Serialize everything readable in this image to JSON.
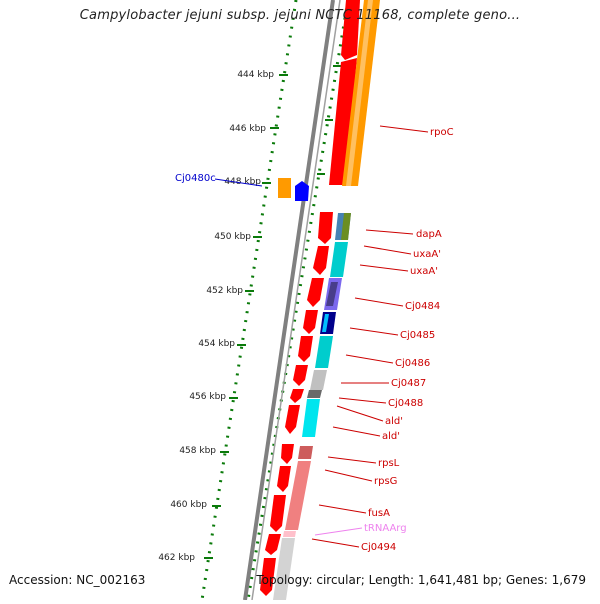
{
  "header": {
    "title": "Campylobacter jejuni subsp. jejuni NCTC 11168, complete geno..."
  },
  "footer": {
    "accession": "Accession: NC_002163",
    "topology": "Topology: circular; Length: 1,641,481 bp; Genes: 1,679"
  },
  "ruler": {
    "ticks": [
      "444 kbp",
      "446 kbp",
      "448 kbp",
      "450 kbp",
      "452 kbp",
      "454 kbp",
      "456 kbp",
      "458 kbp",
      "460 kbp",
      "462 kbp"
    ]
  },
  "genes": {
    "rpoC": "rpoC",
    "dapA": "dapA",
    "uxaA1": "uxaA'",
    "uxaA2": "uxaA'",
    "Cj0484": "Cj0484",
    "Cj0485": "Cj0485",
    "Cj0486": "Cj0486",
    "Cj0487": "Cj0487",
    "Cj0488": "Cj0488",
    "ald1": "ald'",
    "ald2": "ald'",
    "rpsL": "rpsL",
    "rpsG": "rpsG",
    "fusA": "fusA",
    "tRNAArg": "tRNAArg",
    "Cj0494": "Cj0494",
    "Cj0480c": "Cj0480c"
  },
  "colors": {
    "cds": "#ff0000",
    "gene": "#ff9a00",
    "minus_strand_cds": "#0000ff",
    "label_red": "#cc0000",
    "label_blue": "#0000cc",
    "trna": "#ee82ee",
    "cyan": "#00e5ee",
    "backbone": "#808080",
    "ruler": "#0a7a0a"
  }
}
